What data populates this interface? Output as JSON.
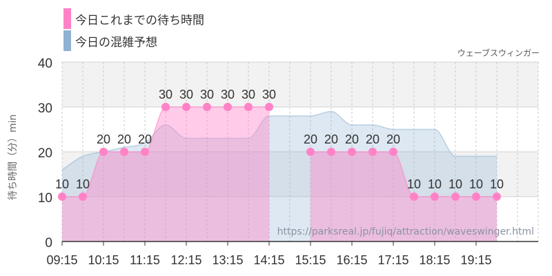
{
  "chart_data": {
    "type": "area",
    "ylabel": "待ち時間（分）min",
    "ylim": [
      0,
      40
    ],
    "yticks": [
      0,
      10,
      20,
      30,
      40
    ],
    "tick_labels": [
      "09:15",
      "10:15",
      "11:15",
      "12:15",
      "13:15",
      "14:15",
      "15:15",
      "16:15",
      "17:15",
      "18:15",
      "19:15"
    ],
    "x_start_time": "09:15",
    "x_end_time": "20:45",
    "grid": true,
    "legend_position": "top-left",
    "subtitle": "ウェーブスウィンガー",
    "source_text": "https://parksreal.jp/fujiq/attraction/waveswinger.html",
    "series": [
      {
        "name": "今日これまでの待ち時間",
        "color": "#ff82c7",
        "segments": [
          [
            {
              "t": "09:15",
              "v": 10
            },
            {
              "t": "09:45",
              "v": 10
            },
            {
              "t": "10:15",
              "v": 20
            },
            {
              "t": "10:45",
              "v": 20
            },
            {
              "t": "11:15",
              "v": 20
            },
            {
              "t": "11:45",
              "v": 30
            },
            {
              "t": "12:15",
              "v": 30
            },
            {
              "t": "12:45",
              "v": 30
            },
            {
              "t": "13:15",
              "v": 30
            },
            {
              "t": "13:45",
              "v": 30
            },
            {
              "t": "14:15",
              "v": 30
            }
          ],
          [
            {
              "t": "15:15",
              "v": 20
            },
            {
              "t": "15:45",
              "v": 20
            },
            {
              "t": "16:15",
              "v": 20
            },
            {
              "t": "16:45",
              "v": 20
            },
            {
              "t": "17:15",
              "v": 20
            },
            {
              "t": "17:45",
              "v": 10
            },
            {
              "t": "18:15",
              "v": 10
            },
            {
              "t": "18:45",
              "v": 10
            },
            {
              "t": "19:15",
              "v": 10
            },
            {
              "t": "19:45",
              "v": 10
            }
          ]
        ]
      },
      {
        "name": "今日の混雑予想",
        "color": "#8fb2d3",
        "points": [
          {
            "t": "09:15",
            "v": 16
          },
          {
            "t": "09:45",
            "v": 19
          },
          {
            "t": "10:15",
            "v": 20
          },
          {
            "t": "10:45",
            "v": 21
          },
          {
            "t": "11:15",
            "v": 22
          },
          {
            "t": "11:45",
            "v": 26
          },
          {
            "t": "12:15",
            "v": 23
          },
          {
            "t": "12:45",
            "v": 23
          },
          {
            "t": "13:15",
            "v": 23
          },
          {
            "t": "13:45",
            "v": 23
          },
          {
            "t": "14:15",
            "v": 28
          },
          {
            "t": "14:45",
            "v": 28
          },
          {
            "t": "15:15",
            "v": 28
          },
          {
            "t": "15:45",
            "v": 29
          },
          {
            "t": "16:15",
            "v": 26
          },
          {
            "t": "16:45",
            "v": 26
          },
          {
            "t": "17:15",
            "v": 25
          },
          {
            "t": "17:45",
            "v": 25
          },
          {
            "t": "18:15",
            "v": 25
          },
          {
            "t": "18:45",
            "v": 19
          },
          {
            "t": "19:15",
            "v": 19
          },
          {
            "t": "19:45",
            "v": 19
          }
        ]
      }
    ]
  }
}
